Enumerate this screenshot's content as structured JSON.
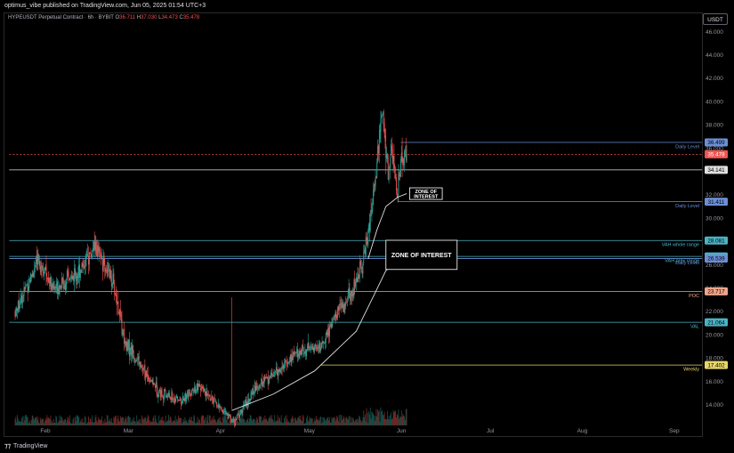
{
  "header": {
    "published": "optimus_vibe published on TradingView.com, Jun 05, 2025 01:54 UTC+3"
  },
  "symbol": {
    "name": "HYPEUSDT Perpetual Contract · 6h · BYBIT",
    "ohlc": [
      {
        "k": "O",
        "v": "36.711"
      },
      {
        "k": "H",
        "v": "37.030"
      },
      {
        "k": "L",
        "v": "34.473"
      },
      {
        "k": "C",
        "v": "35.478"
      }
    ]
  },
  "currency": "USDT",
  "footer": {
    "brand": "TradingView"
  },
  "colors": {
    "up": "#26a69a",
    "down": "#ef5350",
    "level_blue": "#6b8ed6",
    "level_teal": "#4ab3c4",
    "level_white": "#e0e0e0",
    "poc": "#f0a58a",
    "weekly": "#e8d66b",
    "ma": "#e0e0e0"
  },
  "chart_data": {
    "type": "candlestick",
    "title": "",
    "timeframe": "6h",
    "ylim": [
      13,
      47.5
    ],
    "y_ticks": [
      "46.000",
      "44.000",
      "42.000",
      "40.000",
      "38.000",
      "36.000",
      "34.000",
      "32.000",
      "30.000",
      "28.000",
      "26.000",
      "24.000",
      "22.000",
      "20.000",
      "18.000",
      "16.000",
      "14.000"
    ],
    "x_ticks": [
      "Feb",
      "Mar",
      "Apr",
      "May",
      "Jun",
      "Jul",
      "Aug",
      "Sep"
    ],
    "price_path": [
      {
        "x": "2025-01-23",
        "y": 22.0
      },
      {
        "x": "2025-01-31",
        "y": 26.5
      },
      {
        "x": "2025-02-05",
        "y": 24.0
      },
      {
        "x": "2025-02-12",
        "y": 25.0
      },
      {
        "x": "2025-02-19",
        "y": 27.5
      },
      {
        "x": "2025-02-25",
        "y": 24.5
      },
      {
        "x": "2025-03-01",
        "y": 19.5
      },
      {
        "x": "2025-03-07",
        "y": 17.0
      },
      {
        "x": "2025-03-13",
        "y": 15.0
      },
      {
        "x": "2025-03-20",
        "y": 14.3
      },
      {
        "x": "2025-03-26",
        "y": 15.5
      },
      {
        "x": "2025-04-01",
        "y": 14.0
      },
      {
        "x": "2025-04-07",
        "y": 12.5
      },
      {
        "x": "2025-04-14",
        "y": 15.5
      },
      {
        "x": "2025-04-22",
        "y": 17.0
      },
      {
        "x": "2025-04-28",
        "y": 18.5
      },
      {
        "x": "2025-05-06",
        "y": 19.0
      },
      {
        "x": "2025-05-11",
        "y": 21.5
      },
      {
        "x": "2025-05-16",
        "y": 23.5
      },
      {
        "x": "2025-05-20",
        "y": 26.0
      },
      {
        "x": "2025-05-23",
        "y": 30.0
      },
      {
        "x": "2025-05-25",
        "y": 35.0
      },
      {
        "x": "2025-05-27",
        "y": 39.5
      },
      {
        "x": "2025-05-28",
        "y": 36.0
      },
      {
        "x": "2025-05-29",
        "y": 33.0
      },
      {
        "x": "2025-05-30",
        "y": 36.5
      },
      {
        "x": "2025-05-31",
        "y": 33.5
      },
      {
        "x": "2025-06-01",
        "y": 32.0
      },
      {
        "x": "2025-06-02",
        "y": 34.5
      },
      {
        "x": "2025-06-04",
        "y": 35.5
      }
    ],
    "moving_average": [
      {
        "x": "2025-04-06",
        "y": 13.5
      },
      {
        "x": "2025-04-20",
        "y": 14.9
      },
      {
        "x": "2025-05-04",
        "y": 16.9
      },
      {
        "x": "2025-05-18",
        "y": 20.3
      },
      {
        "x": "2025-05-24",
        "y": 23.4
      },
      {
        "x": "2025-05-28",
        "y": 25.5
      },
      {
        "x": "2025-06-04",
        "y": 26.9
      }
    ],
    "short_average": [
      {
        "x": "2025-05-22",
        "y": 26.5
      },
      {
        "x": "2025-05-25",
        "y": 29.0
      },
      {
        "x": "2025-05-28",
        "y": 31.0
      },
      {
        "x": "2025-06-01",
        "y": 31.8
      },
      {
        "x": "2025-06-04",
        "y": 32.1
      }
    ],
    "levels": [
      {
        "price": 36.499,
        "tag": "36.499",
        "label": "Daily Level",
        "color": "#6b8ed6",
        "start": "2025-06-02"
      },
      {
        "price": 35.478,
        "tag": "35.478",
        "label": "",
        "color": "#ef5350",
        "dashed": true,
        "start": "2025-01-21"
      },
      {
        "price": 34.141,
        "tag": "34.141",
        "label": "",
        "color": "#e0e0e0",
        "start": "2025-01-21"
      },
      {
        "price": 31.411,
        "tag": "31.411",
        "label": "Daily Level",
        "color": "#6b8ed6",
        "start": "2025-06-01"
      },
      {
        "price": 28.081,
        "tag": "28.081",
        "label": "VAH whole range",
        "color": "#4ab3c4",
        "start": "2025-01-21"
      },
      {
        "price": 26.717,
        "tag": "26.717",
        "label": "VAH prev range",
        "color": "#4ab3c4",
        "start": "2025-01-21"
      },
      {
        "price": 26.539,
        "tag": "26.539",
        "label": "Daily Level",
        "color": "#6b8ed6",
        "start": "2025-01-21"
      },
      {
        "price": 23.717,
        "tag": "23.717",
        "label": "POC",
        "color": "#f0a58a",
        "start": "2025-01-21"
      },
      {
        "price": 21.064,
        "tag": "21.064",
        "label": "VAL",
        "color": "#4ab3c4",
        "start": "2025-01-21"
      },
      {
        "price": 17.402,
        "tag": "17.402",
        "label": "Weekly",
        "color": "#e8d66b",
        "start": "2025-05-06"
      }
    ],
    "last_price_tag": "35.478",
    "zones": [
      {
        "label": "ZONE OF INTEREST",
        "two_line": true,
        "x_from": "2025-06-05",
        "x_to": "2025-06-16",
        "y_from": 31.6,
        "y_to": 32.6
      },
      {
        "label": "ZONE OF INTEREST",
        "two_line": false,
        "x_from": "2025-05-28",
        "x_to": "2025-06-21",
        "y_from": 25.6,
        "y_to": 28.1
      }
    ]
  }
}
